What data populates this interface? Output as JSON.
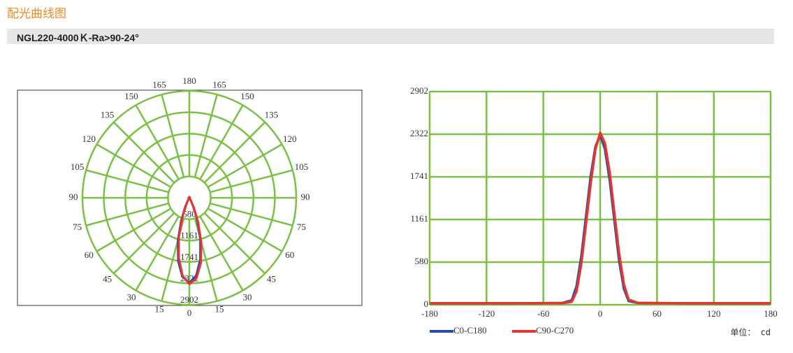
{
  "header": {
    "title": "配光曲线图",
    "model": "NGL220-4000Ｋ-Ra>90-24°"
  },
  "chart_data": [
    {
      "type": "polar",
      "rlim": [
        0,
        2902
      ],
      "rticks": [
        580,
        1161,
        1741,
        2322,
        2902
      ],
      "angle_ticks": [
        0,
        15,
        30,
        45,
        60,
        75,
        90,
        105,
        120,
        135,
        150,
        165,
        180,
        {
          "value": -15,
          "label": "15"
        },
        {
          "value": -30,
          "label": "30"
        },
        {
          "value": -45,
          "label": "45"
        },
        {
          "value": -60,
          "label": "60"
        },
        {
          "value": -75,
          "label": "75"
        },
        {
          "value": -90,
          "label": "90"
        },
        {
          "value": -105,
          "label": "105"
        },
        {
          "value": -120,
          "label": "120"
        },
        {
          "value": -135,
          "label": "135"
        },
        {
          "value": -150,
          "label": "150"
        },
        {
          "value": -165,
          "label": "165"
        }
      ],
      "grid_color": "#7ac143"
    },
    {
      "type": "line",
      "x": [
        -180,
        -90,
        -40,
        -30,
        -25,
        -20,
        -15,
        -10,
        -5,
        0,
        5,
        10,
        15,
        20,
        25,
        30,
        40,
        90,
        180
      ],
      "series": [
        {
          "name": "C0-C180",
          "color": "#2a4fa8",
          "values": [
            20,
            20,
            25,
            60,
            250,
            650,
            1200,
            1750,
            2150,
            2310,
            2120,
            1700,
            1150,
            600,
            220,
            50,
            25,
            20,
            20
          ]
        },
        {
          "name": "C90-C270",
          "color": "#e8342f",
          "values": [
            20,
            20,
            22,
            40,
            180,
            550,
            1100,
            1650,
            2120,
            2340,
            2200,
            1800,
            1250,
            700,
            280,
            70,
            25,
            20,
            20
          ]
        }
      ],
      "xlim": [
        -180,
        180
      ],
      "xticks": [
        -180,
        -120,
        -60,
        0,
        60,
        120,
        180
      ],
      "ylim": [
        0,
        2902
      ],
      "yticks": [
        0,
        580,
        1161,
        1741,
        2322,
        2902
      ],
      "grid": true,
      "grid_color": "#7ac143",
      "unit_label": "单位： cd"
    }
  ]
}
